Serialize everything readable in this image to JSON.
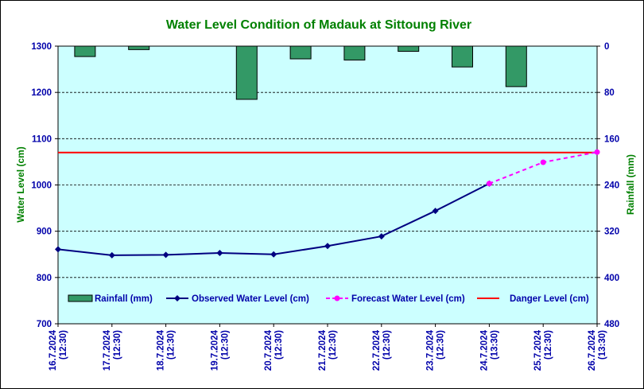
{
  "chart_data": {
    "type": "line",
    "title": "Water Level Condition of Madauk at Sittoung River",
    "ylabel_left": "Water Level (cm)",
    "ylabel_right": "Rainfall (mm)",
    "ylim_left": [
      700,
      1300
    ],
    "yticks_left": [
      700,
      800,
      900,
      1000,
      1100,
      1200,
      1300
    ],
    "ylim_right_inverted": [
      0,
      480
    ],
    "yticks_right": [
      0,
      80,
      160,
      240,
      320,
      400,
      480
    ],
    "categories": [
      [
        "16.7.2024",
        "(12:30)"
      ],
      [
        "17.7.2024",
        "(12:30)"
      ],
      [
        "18.7.2024",
        "(12:30)"
      ],
      [
        "19.7.2024",
        "(12:30)"
      ],
      [
        "20.7.2024",
        "(12:30)"
      ],
      [
        "21.7.2024",
        "(12:30)"
      ],
      [
        "22.7.2024",
        "(12:30)"
      ],
      [
        "23.7.2024",
        "(12:30)"
      ],
      [
        "24.7.2024",
        "(13:30)"
      ],
      [
        "25.7.2024",
        "(12:30)"
      ],
      [
        "26.7.2024",
        "(13:30)"
      ]
    ],
    "series": [
      {
        "name": "Rainfall (mm)",
        "kind": "bar",
        "axis": "right",
        "color": "#339966",
        "values": [
          18,
          6,
          null,
          92,
          22,
          24,
          9,
          36,
          70,
          null,
          null
        ]
      },
      {
        "name": "Observed Water Level (cm)",
        "kind": "line",
        "axis": "left",
        "color": "#000080",
        "marker": "diamond",
        "values": [
          861,
          848,
          849,
          853,
          850,
          868,
          889,
          944,
          1003,
          null,
          null
        ]
      },
      {
        "name": "Forecast Water Level (cm)",
        "kind": "line",
        "dashed": true,
        "axis": "left",
        "color": "#ff00ff",
        "marker": "circle",
        "values": [
          null,
          null,
          null,
          null,
          null,
          null,
          null,
          null,
          1003,
          1049,
          1071
        ]
      },
      {
        "name": "Danger Level (cm)",
        "kind": "hline",
        "axis": "left",
        "color": "#ff0000",
        "value": 1070
      }
    ],
    "grid": "horizontal",
    "plot_background": "#ccffff",
    "legend_position": "inside-bottom"
  }
}
